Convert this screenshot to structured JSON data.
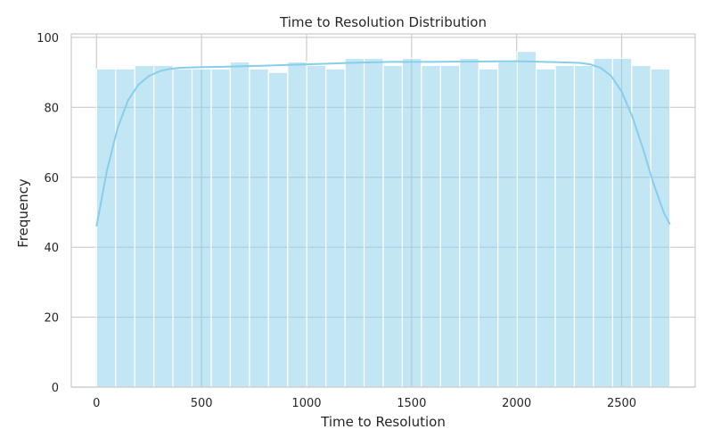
{
  "chart_data": {
    "type": "bar",
    "title": "Time to Resolution Distribution",
    "xlabel": "Time to Resolution",
    "ylabel": "Frequency",
    "xlim": [
      -120,
      2850
    ],
    "ylim": [
      0,
      101
    ],
    "xticks": [
      0,
      500,
      1000,
      1500,
      2000,
      2500
    ],
    "yticks": [
      0,
      20,
      40,
      60,
      80,
      100
    ],
    "bin_width": 91,
    "bins_start": [
      0,
      91,
      182,
      273,
      364,
      455,
      546,
      637,
      728,
      819,
      910,
      1001,
      1092,
      1183,
      1274,
      1365,
      1456,
      1547,
      1638,
      1729,
      1820,
      1911,
      2002,
      2093,
      2184,
      2275,
      2366,
      2457,
      2548,
      2639
    ],
    "values": [
      91,
      91,
      92,
      92,
      91,
      91,
      91,
      93,
      91,
      90,
      93,
      92,
      91,
      94,
      94,
      92,
      94,
      92,
      92,
      94,
      91,
      93,
      96,
      91,
      92,
      92,
      94,
      94,
      92,
      91
    ],
    "kde": {
      "x": [
        0,
        50,
        100,
        150,
        200,
        250,
        300,
        350,
        400,
        500,
        600,
        800,
        1000,
        1200,
        1400,
        1600,
        1800,
        2000,
        2200,
        2300,
        2350,
        2400,
        2450,
        2500,
        2550,
        2600,
        2650,
        2700,
        2730
      ],
      "y": [
        46,
        62,
        74,
        82,
        86.5,
        89,
        90.3,
        91,
        91.3,
        91.5,
        91.6,
        91.9,
        92.3,
        92.7,
        93,
        93,
        93.1,
        93.2,
        92.9,
        92.7,
        92.3,
        91.3,
        89,
        84.5,
        77.5,
        68.5,
        58.5,
        50,
        46.5
      ]
    },
    "grid": true,
    "colors": {
      "bar": "#87ceeb",
      "line": "#87ceeb",
      "grid": "#cccccc",
      "axis": "#cccccc"
    }
  }
}
